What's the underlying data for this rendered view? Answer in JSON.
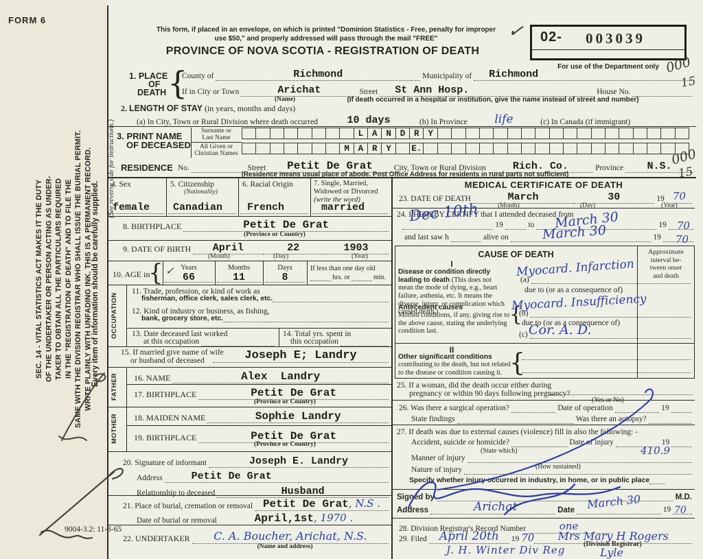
{
  "page": {
    "form_no": "FORM 6",
    "plate_code": "9004-3.2: 11-3-65",
    "paper_color": "#eef0e6",
    "ink_blue": "#2e3ea6"
  },
  "strip": {
    "sec14_lines": [
      "SEC. 14 - VITAL STATISTICS ACT MAKES IT THE DUTY",
      "OF THE UNDERTAKER OR PERSON ACTING AS UNDER-",
      "TAKER TO OBTAIN ALL THE PARTICULARS REQUIRED",
      "IN THE \"REGISTRATION OF DEATH\" AND TO FILE THE",
      "SAME WITH THE DIVISION REGISTRAR WHO SHALL ISSUE THE BURIAL PERMIT.",
      "WRITE PLAINLY WITH UNFADING INK. THIS IS A PERMANENT RECORD."
    ],
    "every_item": "Every item of information should be carefully supplied.",
    "reverse_note": "(See reverse side for instructions.)"
  },
  "header": {
    "notice1": "This form, if placed in an envelope, on which is printed \"Dominion Statistics - Free, penalty for improper",
    "notice2": "use $50,\" and properly addressed will pass through the mail \"FREE\"",
    "title": "PROVINCE OF NOVA SCOTIA - REGISTRATION OF DEATH"
  },
  "dept": {
    "prefix": "02-",
    "number": "003039",
    "caption": "For use of the Department only",
    "check": "✓",
    "hw_a": "000",
    "hw_b": "15"
  },
  "item1": {
    "l1": "1. PLACE",
    "l2": "OF",
    "l3": "DEATH",
    "county": "County of",
    "county_v": "Richmond",
    "muni": "Municipality of",
    "muni_v": "Richmond",
    "city": "If in City or Town",
    "city_v": "Arichat",
    "name_cap": "(Name)",
    "street": "Street",
    "street_v": "St Ann Hosp.",
    "house": "House No.",
    "street_cap": "(If death occurred in a hospital or institution, give the name instead of street and number)"
  },
  "item2": {
    "no": "2.",
    "t": "LENGTH OF STAY",
    "t2": "(in years, months and days)",
    "a": "(a) In City, Town or Rural Division where death occurred",
    "a_v": "10 days",
    "b": "(b) In Province",
    "b_v": "life",
    "c": "(c) In Canada (if immigrant)"
  },
  "item3": {
    "t1": "3. PRINT NAME",
    "t2": "OF DECEASED",
    "sur1": "Surname or",
    "sur2": "Last Name",
    "giv1": "All Given or",
    "giv2": "Christian Names",
    "surname_cells": [
      "",
      "",
      "",
      "",
      "",
      "",
      "",
      "",
      "L",
      "A",
      "N",
      "D",
      "R",
      "Y",
      "",
      "",
      "",
      "",
      "",
      "",
      "",
      "",
      "",
      "",
      "",
      "",
      "",
      "",
      "",
      "",
      "",
      ""
    ],
    "given_cells": [
      "",
      "",
      "",
      "",
      "",
      "",
      "",
      "M",
      "A",
      "R",
      "Y",
      "",
      "E.",
      "",
      "",
      "",
      "",
      "",
      "",
      "",
      "",
      "",
      "",
      "",
      "",
      "",
      "",
      "",
      "",
      "",
      "",
      ""
    ]
  },
  "residence": {
    "t": "RESIDENCE",
    "no_l": "No.",
    "street": "Street",
    "street_v": "Petit De Grat",
    "city": "City, Town or Rural Division",
    "city_v": "Rich. Co.",
    "prov": "Province",
    "prov_v": "N.S.",
    "cap": "(Residence means usual place of abode. Post Office Address for residents in rural parts not sufficient)",
    "hw_a": "000",
    "hw_b": "15"
  },
  "item4": {
    "l": "4. Sex",
    "v": "female"
  },
  "item5": {
    "l": "5. Citizenship",
    "l2": "(Nationality)",
    "v": "Canadian"
  },
  "item6": {
    "l": "6. Racial Origin",
    "v": "French"
  },
  "item7": {
    "l1": "7. Single, Married,",
    "l2": "Widowed or Divorced",
    "l3": "(write the word)",
    "v": "married"
  },
  "item8": {
    "l": "8. BIRTHPLACE",
    "v": "Petit De Grat",
    "cap": "(Province or Country)"
  },
  "item9": {
    "l": "9. DATE OF BIRTH",
    "month": "April",
    "mcap": "(Month)",
    "day": "22",
    "dcap": "(Day)",
    "year": "1903",
    "ycap": "(Year)"
  },
  "item10": {
    "l": "10. AGE in",
    "yl": "Years",
    "y": "66",
    "check": "✓",
    "ml": "Months",
    "m": "11",
    "dl": "Days",
    "d": "8",
    "less": "If less than one day old",
    "hrs": "hrs. or",
    "min": "min."
  },
  "occ": {
    "side": "OCCUPATION",
    "i11a": "11. Trade, profession, or kind of work as",
    "i11b": "fisherman, office clerk, sales clerk, etc.",
    "i12a": "12. Kind of industry or business, as fishing,",
    "i12b": "bank, grocery store, etc.",
    "i13a": "13. Date deceased last worked",
    "i13b": "at this occupation",
    "i14a": "14. Total yrs. spent in",
    "i14b": "this occupation"
  },
  "item15": {
    "l1": "15. If married give name of wife",
    "l2": "or husband of deceased",
    "v": "Joseph E; Landry"
  },
  "father": {
    "side": "FATHER",
    "i16": "16. NAME",
    "i16_v": "Alex  Landry",
    "i17": "17. BIRTHPLACE",
    "i17_v": "Petit De Grat",
    "cap": "(Province or Country)"
  },
  "mother": {
    "side": "MOTHER",
    "i18": "18. MAIDEN NAME",
    "i18_v": "Sophie Landry",
    "i19": "19. BIRTHPLACE",
    "i19_v": "Petit De Grat",
    "cap": "(Province or Country)"
  },
  "item20": {
    "l": "20. Signature of informant",
    "v": "Joseph E. Landry",
    "addr": "Address",
    "addr_v": "Petit De Grat",
    "rel": "Relationship to deceased",
    "rel_v": "Husband"
  },
  "item21": {
    "l": "21. Place of burial, cremation or removal",
    "v": "Petit De Grat",
    "v_hw": ", N.S .",
    "dl": "Date of burial or removal",
    "d_v": "April,1st",
    "d_hw": ", 1970 ."
  },
  "item22": {
    "l": "22. UNDERTAKER",
    "v_hw": "C. A. Boucher, Arichat, N.S.",
    "cap": "(Name and address)"
  },
  "med": {
    "title": "MEDICAL CERTIFICATE OF DEATH",
    "i23": {
      "l": "23. DATE OF DEATH",
      "month": "March",
      "mcap": "(Month)",
      "day": "30",
      "dcap": "(Day)",
      "y19": "19",
      "y_hw": "70",
      "ycap": "(Year)"
    },
    "i24": {
      "l": "24. I HEREBY CERTIFY that I attended deceased from",
      "hw_from": "Dec 10th",
      "y19a": "19",
      "to": "to",
      "hw_to": "March 30",
      "y19b": "19",
      "hw_yb": "70",
      "last": "and last saw h",
      "alive": "alive on",
      "hw_alive": "March 30",
      "y19c": "19",
      "hw_yc": "70"
    },
    "cause": {
      "title": "CAUSE OF DEATH",
      "interval_lines": [
        "Approximate",
        "interval be-",
        "tween onset",
        "and death"
      ],
      "s1": "I",
      "dis_b": "Disease or condition directly leading to death",
      "dis_r": "(This does not mean the mode of dying, e.g., heart failure, asthenia, etc. It means the disease, injury, or complication which caused death.)",
      "a": "(a)",
      "a_hw": "Myocard. Infarction",
      "due1": "due to (or as a consequence of)",
      "ant_b": "Antecedent causes",
      "ant_r": "Morbid conditions, if any, giving rise to the above cause, stating the underlying condition last.",
      "b": "(b)",
      "b_hw": "Myocard. Insufficiency",
      "due2": "due to (or as a consequence of)",
      "c": "(c)",
      "c_hw": "Cor. A. D.",
      "s2": "II",
      "oth_b": "Other significant conditions",
      "oth_r": "contributing to the death, but not related to the disease or condition causing it."
    },
    "i25": {
      "l1": "25. If a woman, did the death occur either during",
      "l2": "pregnancy or within 90 days following pregnancy?",
      "cap": "(Yes or No)"
    },
    "i26": {
      "q1": "26. Was there a surgical operation?",
      "q2": "Date of operation",
      "y19": "19",
      "q3": "State findings",
      "q4": "Was there an autopsy?"
    },
    "i27": {
      "intro": "27. If death was due to external causes (violence) fill in also the following: -",
      "q1": "Accident, suicide or homicide?",
      "cap1": "(State which)",
      "q2": "Date of injury",
      "y19": "19",
      "q3": "Manner of injury",
      "cap2": "(How sustained)",
      "hw_code": "410.9",
      "q4": "Nature of injury",
      "q5": "Specify whether injury occurred in industry, in home, or in public place"
    },
    "signed": {
      "l": "Signed by",
      "md": "M.D.",
      "addr": "Address",
      "addr_hw": "Arichat",
      "date": "Date",
      "date_hw": "March 30",
      "y19": "19",
      "y_hw": "70"
    },
    "i28": {
      "l": "28. Division Registrar's Record Number",
      "hw": "one"
    },
    "i29": {
      "l": "29. Filed",
      "hw_date": "April 20th",
      "y19": "19",
      "hw_y": "70",
      "hw_reg": "Mrs Mary H Rogers",
      "cap": "(Division Registrar)",
      "hw_x1": "J. H. Winter  Div Reg",
      "hw_x2": "Lyle"
    }
  }
}
